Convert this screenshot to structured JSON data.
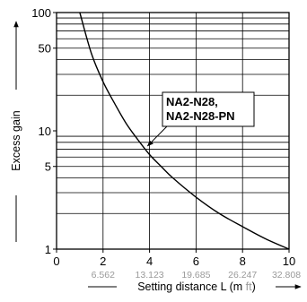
{
  "chart_data": {
    "type": "line",
    "title": "",
    "xlabel_main": "Setting distance L (m ",
    "xlabel_ft": "ft",
    "xlabel_end": ")",
    "ylabel": "Excess gain",
    "x_scale": "linear",
    "y_scale": "log",
    "xlim": [
      0,
      10
    ],
    "ylim": [
      1,
      100
    ],
    "grid": true,
    "x_ticks": [
      0,
      2,
      4,
      6,
      8,
      10
    ],
    "x_tick_labels": [
      "0",
      "2",
      "4",
      "6",
      "8",
      "10"
    ],
    "x_ft_ticks": [
      2,
      4,
      6,
      8,
      10
    ],
    "x_ft_labels": [
      "6.562",
      "13.123",
      "19.685",
      "26.247",
      "32.808"
    ],
    "y_ticks": [
      1,
      5,
      10,
      50,
      100
    ],
    "y_tick_labels": [
      "1",
      "5",
      "10",
      "50",
      "100"
    ],
    "annotation": {
      "lines": [
        "NA2-N28,",
        "NA2-N28-PN"
      ],
      "x": 3.8,
      "y": 7.2
    },
    "series": [
      {
        "name": "NA2-N28, NA2-N28-PN",
        "x": [
          1.0,
          1.5,
          2.0,
          2.5,
          3.0,
          3.5,
          4.0,
          4.5,
          5.0,
          6.0,
          7.0,
          8.0,
          9.0,
          10.0
        ],
        "y": [
          100,
          45,
          26,
          17,
          11.5,
          8.4,
          6.3,
          5.0,
          4.0,
          2.75,
          2.0,
          1.55,
          1.22,
          1.0
        ]
      }
    ]
  }
}
